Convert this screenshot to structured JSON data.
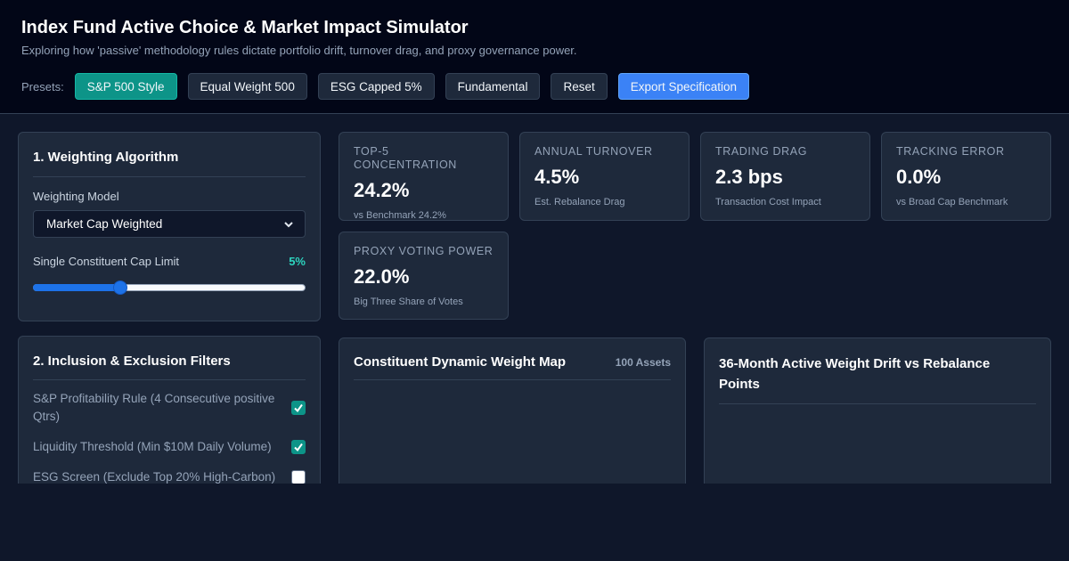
{
  "header": {
    "title": "Index Fund Active Choice & Market Impact Simulator",
    "subtitle": "Exploring how 'passive' methodology rules dictate portfolio drift, turnover drag, and proxy governance power.",
    "presets_label": "Presets:",
    "presets": [
      {
        "label": "S&P 500 Style",
        "active": true
      },
      {
        "label": "Equal Weight 500",
        "active": false
      },
      {
        "label": "ESG Capped 5%",
        "active": false
      },
      {
        "label": "Fundamental",
        "active": false
      },
      {
        "label": "Reset",
        "active": false
      }
    ],
    "export_label": "Export Specification"
  },
  "weighting": {
    "title": "1. Weighting Algorithm",
    "model_label": "Weighting Model",
    "model_value": "Market Cap Weighted",
    "cap_label": "Single Constituent Cap Limit",
    "cap_value": "5%",
    "cap_slider_fraction": 0.31
  },
  "filters": {
    "title": "2. Inclusion & Exclusion Filters",
    "items": [
      {
        "label": "S&P Profitability Rule (4 Consecutive positive Qtrs)",
        "checked": true
      },
      {
        "label": "Liquidity Threshold (Min $10M Daily Volume)",
        "checked": true
      },
      {
        "label": "ESG Screen (Exclude Top 20% High-Carbon)",
        "checked": false
      }
    ]
  },
  "kpis": [
    {
      "label": "TOP-5 CONCENTRATION",
      "value": "24.2%",
      "note": "vs Benchmark 24.2%"
    },
    {
      "label": "ANNUAL TURNOVER",
      "value": "4.5%",
      "note": "Est. Rebalance Drag"
    },
    {
      "label": "TRADING DRAG",
      "value": "2.3 bps",
      "note": "Transaction Cost Impact"
    },
    {
      "label": "TRACKING ERROR",
      "value": "0.0%",
      "note": "vs Broad Cap Benchmark"
    },
    {
      "label": "PROXY VOTING POWER",
      "value": "22.0%",
      "note": "Big Three Share of Votes"
    }
  ],
  "weight_map": {
    "title": "Constituent Dynamic Weight Map",
    "count": "100 Assets"
  },
  "drift": {
    "title_line1": "36-Month Active Weight Drift vs Rebalance",
    "title_line2": "Points"
  },
  "colors": {
    "accent_teal": "#0d9488",
    "primary_blue": "#3b82f6",
    "cap_value": "#2dd4bf"
  }
}
